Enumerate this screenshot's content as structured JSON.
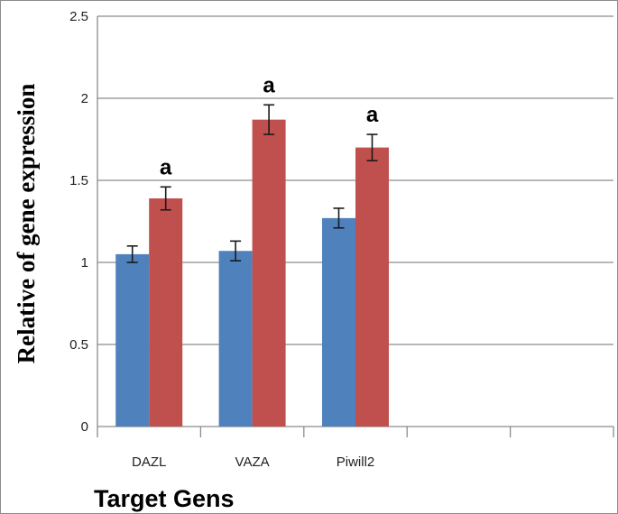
{
  "chart_data": {
    "type": "bar",
    "categories": [
      "DAZL",
      "VAZA",
      "Piwill2"
    ],
    "series": [
      {
        "values": [
          1.05,
          1.07,
          1.27
        ],
        "errors": [
          0.05,
          0.06,
          0.06
        ],
        "color": "#4f81bd"
      },
      {
        "values": [
          1.39,
          1.87,
          1.7
        ],
        "errors": [
          0.07,
          0.09,
          0.08
        ],
        "color": "#c0504d"
      }
    ],
    "annotations": [
      "a",
      "a",
      "a"
    ],
    "xlabel": "Target Gens",
    "ylabel": "Relative of gene expression",
    "ylim": [
      0,
      2.5
    ],
    "yticks": [
      0,
      0.5,
      1,
      1.5,
      2,
      2.5
    ],
    "grid": true,
    "empty_category_slots": 2,
    "legend": "none"
  }
}
